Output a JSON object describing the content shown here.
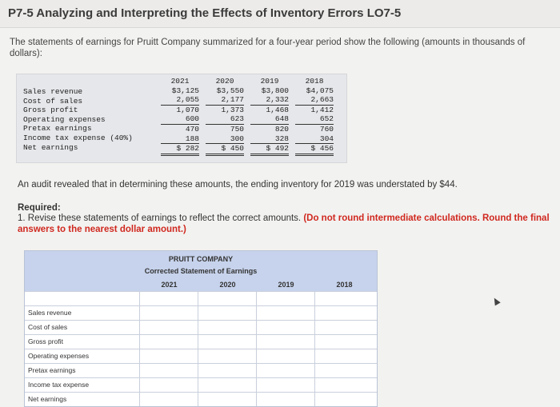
{
  "page": {
    "title": "P7-5 Analyzing and Interpreting the Effects of Inventory Errors LO7-5",
    "intro": "The statements of earnings for Pruitt Company summarized for a four-year period show the following (amounts in thousands of dollars):"
  },
  "statement": {
    "labels": [
      "Sales revenue",
      "Cost of sales",
      "Gross profit",
      "Operating expenses",
      "Pretax earnings",
      "Income tax expense (40%)",
      "Net earnings"
    ],
    "columns": [
      {
        "year": "2021",
        "values": [
          "$3,125",
          "2,055",
          "1,070",
          "600",
          "470",
          "188",
          "$  282"
        ]
      },
      {
        "year": "2020",
        "values": [
          "$3,550",
          "2,177",
          "1,373",
          "623",
          "750",
          "300",
          "$  450"
        ]
      },
      {
        "year": "2019",
        "values": [
          "$3,800",
          "2,332",
          "1,468",
          "648",
          "820",
          "328",
          "$  492"
        ]
      },
      {
        "year": "2018",
        "values": [
          "$4,075",
          "2,663",
          "1,412",
          "652",
          "760",
          "304",
          "$  456"
        ]
      }
    ]
  },
  "audit_text": "An audit revealed that in determining these amounts, the ending inventory for 2019 was understated by $44.",
  "required": {
    "title": "Required:",
    "text": "1. Revise these statements of earnings to reflect the correct amounts.",
    "instruction": "(Do not round intermediate calculations. Round the final answers to the nearest dollar amount.)"
  },
  "corrected": {
    "company": "PRUITT COMPANY",
    "statement_title": "Corrected Statement of Earnings",
    "years": [
      "2021",
      "2020",
      "2019",
      "2018"
    ],
    "rows": [
      "Sales revenue",
      "Cost of sales",
      "Gross profit",
      "Operating expenses",
      "Pretax earnings",
      "Income tax expense",
      "Net earnings"
    ]
  }
}
